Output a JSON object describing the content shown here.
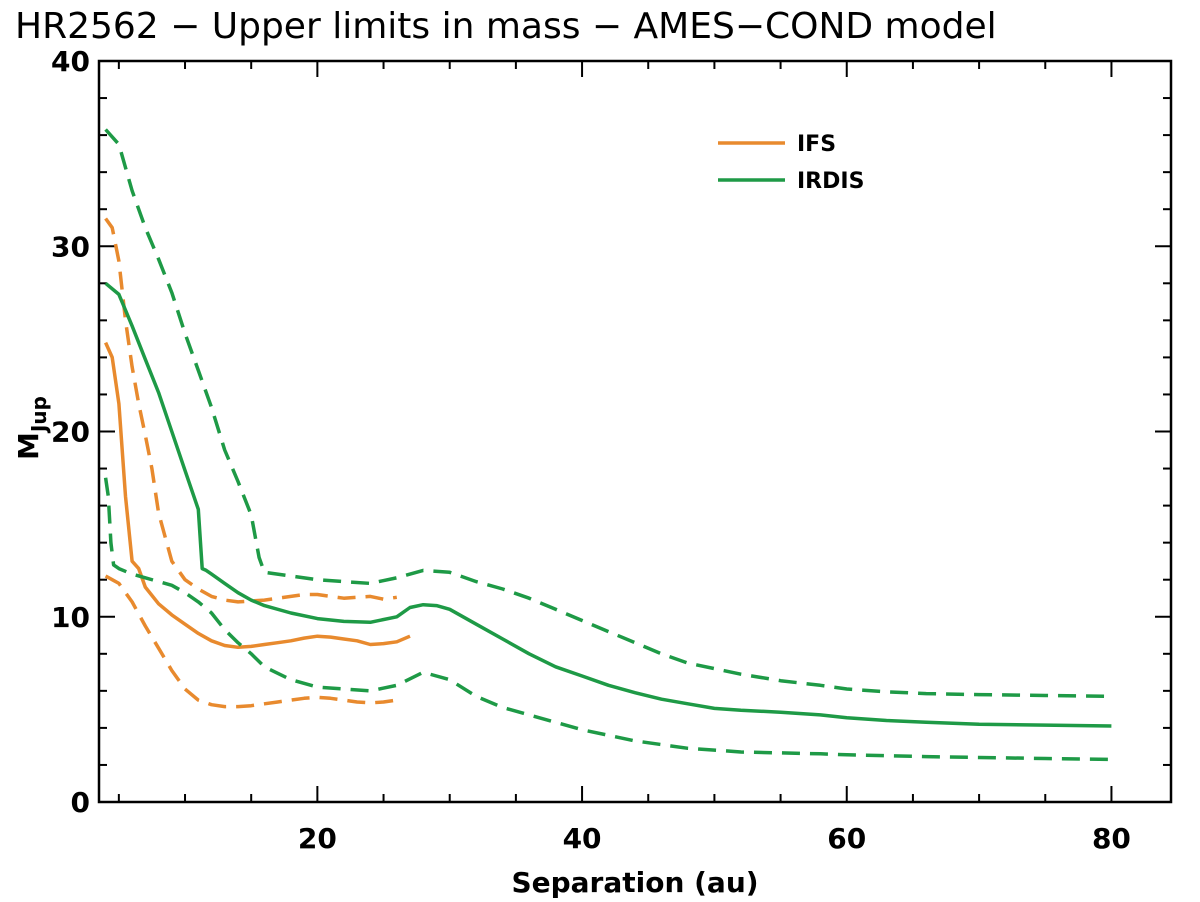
{
  "chart_data": {
    "type": "line",
    "title": "HR2562 − Upper limits in mass − AMES−COND model",
    "xlabel": "Separation (au)",
    "ylabel_main": "M",
    "ylabel_sub": "Jup",
    "xlim": [
      3.5,
      84.5
    ],
    "ylim": [
      0,
      40
    ],
    "xticks": [
      20,
      40,
      60,
      80
    ],
    "yticks": [
      0,
      10,
      20,
      30,
      40
    ],
    "xtick_labels": [
      "20",
      "40",
      "60",
      "80"
    ],
    "ytick_labels": [
      "0",
      "10",
      "20",
      "30",
      "40"
    ],
    "legend": {
      "position": "top-right",
      "entries": [
        "IFS",
        "IRDIS"
      ]
    },
    "colors": {
      "IFS": "#E88A2E",
      "IRDIS": "#1E9A46"
    },
    "series": [
      {
        "name": "IFS",
        "style": "solid",
        "color": "#E88A2E",
        "x": [
          4.0,
          4.5,
          5.0,
          5.5,
          6.0,
          6.5,
          7.0,
          8,
          9,
          10,
          11,
          12,
          13,
          14,
          15,
          16,
          17,
          18,
          19,
          20,
          21,
          22,
          23,
          24,
          25,
          26,
          27
        ],
        "y": [
          24.8,
          24.0,
          21.5,
          16.5,
          13.0,
          12.6,
          11.6,
          10.7,
          10.1,
          9.6,
          9.1,
          8.7,
          8.45,
          8.35,
          8.4,
          8.5,
          8.6,
          8.7,
          8.85,
          8.95,
          8.9,
          8.8,
          8.7,
          8.5,
          8.55,
          8.65,
          8.95
        ]
      },
      {
        "name": "IFS upper",
        "style": "dashed",
        "color": "#E88A2E",
        "x": [
          4.0,
          4.5,
          5.0,
          5.5,
          6.0,
          6.5,
          7.0,
          7.5,
          8,
          9,
          10,
          11,
          12,
          13,
          14,
          15,
          16,
          17,
          18,
          19,
          20,
          21,
          22,
          23,
          24,
          25,
          26
        ],
        "y": [
          31.5,
          31.0,
          29.2,
          26.0,
          23.5,
          21.5,
          19.8,
          18.0,
          15.6,
          13.0,
          12.0,
          11.5,
          11.1,
          10.9,
          10.8,
          10.85,
          10.9,
          11.0,
          11.1,
          11.2,
          11.2,
          11.1,
          11.0,
          11.05,
          11.1,
          10.95,
          11.05
        ]
      },
      {
        "name": "IFS lower",
        "style": "dashed",
        "color": "#E88A2E",
        "x": [
          4.0,
          4.5,
          5.0,
          5.5,
          6.0,
          7,
          8,
          9,
          10,
          11,
          12,
          13,
          14,
          15,
          16,
          17,
          18,
          19,
          20,
          21,
          22,
          23,
          24,
          25,
          26
        ],
        "y": [
          12.2,
          12.0,
          11.8,
          11.3,
          10.8,
          9.5,
          8.3,
          7.1,
          6.1,
          5.5,
          5.25,
          5.15,
          5.15,
          5.2,
          5.3,
          5.4,
          5.5,
          5.6,
          5.65,
          5.6,
          5.5,
          5.4,
          5.35,
          5.4,
          5.5
        ]
      },
      {
        "name": "IRDIS",
        "style": "solid",
        "color": "#1E9A46",
        "x": [
          4.0,
          5,
          6,
          7,
          8,
          9,
          10,
          11,
          11.3,
          11.6,
          12,
          13,
          14,
          15,
          16,
          18,
          20,
          22,
          24,
          26,
          27,
          28,
          29,
          30,
          32,
          34,
          36,
          38,
          40,
          42,
          44,
          46,
          48,
          50,
          52,
          55,
          58,
          60,
          63,
          66,
          70,
          75,
          80
        ],
        "y": [
          28.0,
          27.4,
          25.7,
          23.9,
          22.1,
          20.0,
          17.9,
          15.8,
          12.6,
          12.5,
          12.3,
          11.8,
          11.3,
          10.9,
          10.6,
          10.2,
          9.9,
          9.75,
          9.7,
          10.0,
          10.5,
          10.65,
          10.6,
          10.4,
          9.6,
          8.8,
          8.0,
          7.3,
          6.8,
          6.3,
          5.9,
          5.55,
          5.3,
          5.05,
          4.95,
          4.85,
          4.7,
          4.55,
          4.4,
          4.3,
          4.2,
          4.15,
          4.1
        ]
      },
      {
        "name": "IRDIS upper",
        "style": "dashed",
        "color": "#1E9A46",
        "x": [
          4.0,
          5,
          6,
          7,
          8,
          9,
          10,
          11,
          12,
          13,
          14,
          15,
          15.6,
          16,
          18,
          20,
          22,
          24,
          26,
          28,
          30,
          32,
          34,
          36,
          38,
          40,
          42,
          44,
          46,
          48,
          50,
          52,
          55,
          58,
          60,
          63,
          66,
          70,
          75,
          80
        ],
        "y": [
          36.3,
          35.5,
          33.0,
          31.0,
          29.3,
          27.5,
          25.3,
          23.3,
          21.3,
          19.0,
          17.3,
          15.5,
          13.2,
          12.4,
          12.2,
          12.0,
          11.9,
          11.8,
          12.1,
          12.5,
          12.4,
          11.9,
          11.5,
          11.0,
          10.4,
          9.8,
          9.2,
          8.6,
          8.0,
          7.5,
          7.2,
          6.9,
          6.55,
          6.3,
          6.1,
          5.95,
          5.85,
          5.8,
          5.75,
          5.7
        ]
      },
      {
        "name": "IRDIS lower",
        "style": "dashed",
        "color": "#1E9A46",
        "x": [
          4.0,
          4.2,
          4.4,
          4.6,
          4.8,
          5,
          6,
          7,
          8,
          9,
          10,
          11,
          12,
          13,
          14,
          15,
          16,
          18,
          20,
          22,
          24,
          26,
          28,
          30,
          32,
          34,
          36,
          38,
          40,
          42,
          44,
          46,
          48,
          50,
          52,
          55,
          58,
          60,
          63,
          66,
          70,
          75,
          80
        ],
        "y": [
          17.5,
          16.5,
          14.0,
          12.8,
          12.7,
          12.6,
          12.3,
          12.1,
          11.9,
          11.7,
          11.3,
          10.8,
          10.2,
          9.3,
          8.6,
          8.0,
          7.3,
          6.6,
          6.2,
          6.1,
          6.0,
          6.3,
          7.0,
          6.6,
          5.7,
          5.1,
          4.7,
          4.3,
          3.9,
          3.6,
          3.3,
          3.1,
          2.9,
          2.8,
          2.7,
          2.65,
          2.6,
          2.55,
          2.5,
          2.45,
          2.4,
          2.35,
          2.3
        ]
      }
    ]
  }
}
